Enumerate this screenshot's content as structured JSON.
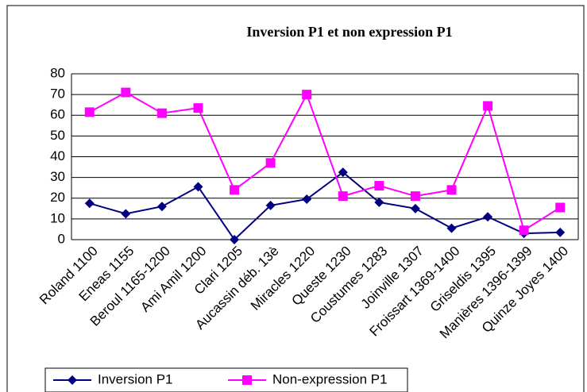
{
  "chart_data": {
    "type": "line",
    "title": "Inversion P1 et non expression P1",
    "categories": [
      "Roland 1100",
      "Eneas 1155",
      "Beroul 1165-1200",
      "Ami Amil 1200",
      "Clari 1205",
      "Aucassin déb. 13è",
      "Miracles 1220",
      "Queste 1230",
      "Coustumes 1283",
      "Joinville 1307",
      "Froissart 1369-1400",
      "Griseldis 1395",
      "Manières 1396-1399",
      "Quinze Joyes 1400"
    ],
    "series": [
      {
        "name": "Inversion P1",
        "color": "#000080",
        "values": [
          17.5,
          12.5,
          16,
          25.5,
          0,
          16.5,
          19.5,
          32.5,
          18,
          15,
          5.5,
          11,
          3,
          3.5
        ]
      },
      {
        "name": "Non-expression P1",
        "color": "#ff00ff",
        "values": [
          61.5,
          71,
          61,
          63.5,
          24,
          37,
          70,
          21,
          26,
          21,
          24,
          64.5,
          4.5,
          15.5
        ]
      }
    ],
    "ylim": [
      0,
      80
    ],
    "yticks": [
      0,
      10,
      20,
      30,
      40,
      50,
      60,
      70,
      80
    ],
    "grid": true,
    "legend": "bottom"
  }
}
